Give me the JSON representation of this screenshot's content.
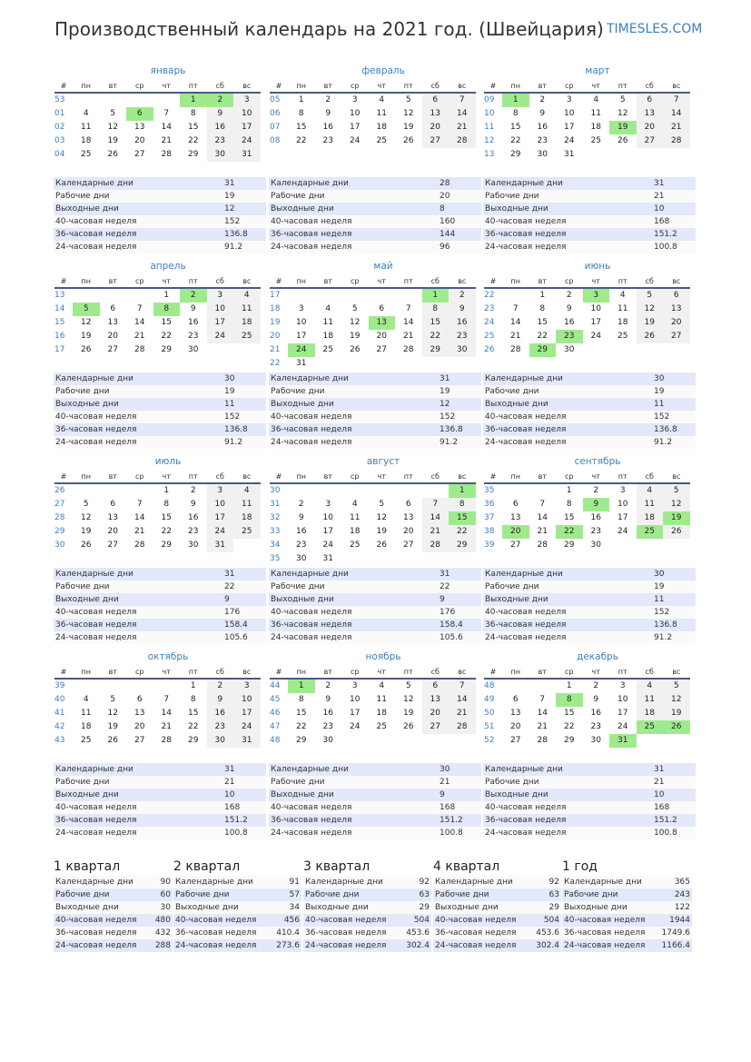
{
  "header": {
    "title": "Производственный календарь на 2021 год. (Швейцария)",
    "site": "TIMESLES.COM"
  },
  "colors": {
    "accent": "#3d7fc0",
    "holiday": "#a0ea8e",
    "weekend": "#f1f1f1",
    "stat_row": "#e3e8fa"
  },
  "weekday_headers": [
    "#",
    "пн",
    "вт",
    "ср",
    "чт",
    "пт",
    "сб",
    "вс"
  ],
  "stat_labels": [
    "Календарные дни",
    "Рабочие дни",
    "Выходные дни",
    "40-часовая неделя",
    "36-часовая неделя",
    "24-часовая неделя"
  ],
  "months": [
    {
      "name": "январь",
      "first_weekday": 5,
      "days": 31,
      "weeks": [
        "53",
        "01",
        "02",
        "03",
        "04"
      ],
      "holidays": [
        1,
        2,
        6
      ],
      "stats": [
        "31",
        "19",
        "12",
        "152",
        "136.8",
        "91.2"
      ]
    },
    {
      "name": "февраль",
      "first_weekday": 1,
      "days": 28,
      "weeks": [
        "05",
        "06",
        "07",
        "08"
      ],
      "holidays": [],
      "stats": [
        "28",
        "20",
        "8",
        "160",
        "144",
        "96"
      ]
    },
    {
      "name": "март",
      "first_weekday": 1,
      "days": 31,
      "weeks": [
        "09",
        "10",
        "11",
        "12",
        "13"
      ],
      "holidays": [
        1,
        19
      ],
      "stats": [
        "31",
        "21",
        "10",
        "168",
        "151.2",
        "100.8"
      ]
    },
    {
      "name": "апрель",
      "first_weekday": 4,
      "days": 30,
      "weeks": [
        "13",
        "14",
        "15",
        "16",
        "17"
      ],
      "holidays": [
        2,
        5,
        8
      ],
      "stats": [
        "30",
        "19",
        "11",
        "152",
        "136.8",
        "91.2"
      ]
    },
    {
      "name": "май",
      "first_weekday": 6,
      "days": 31,
      "weeks": [
        "17",
        "18",
        "19",
        "20",
        "21",
        "22"
      ],
      "holidays": [
        1,
        13,
        24
      ],
      "stats": [
        "31",
        "19",
        "12",
        "152",
        "136.8",
        "91.2"
      ]
    },
    {
      "name": "июнь",
      "first_weekday": 2,
      "days": 30,
      "weeks": [
        "22",
        "23",
        "24",
        "25",
        "26"
      ],
      "holidays": [
        3,
        23,
        29
      ],
      "stats": [
        "30",
        "19",
        "11",
        "152",
        "136.8",
        "91.2"
      ]
    },
    {
      "name": "июль",
      "first_weekday": 4,
      "days": 31,
      "weeks": [
        "26",
        "27",
        "28",
        "29",
        "30"
      ],
      "holidays": [],
      "stats": [
        "31",
        "22",
        "9",
        "176",
        "158.4",
        "105.6"
      ]
    },
    {
      "name": "август",
      "first_weekday": 7,
      "days": 31,
      "weeks": [
        "30",
        "31",
        "32",
        "33",
        "34",
        "35"
      ],
      "holidays": [
        1,
        15
      ],
      "stats": [
        "31",
        "22",
        "9",
        "176",
        "158.4",
        "105.6"
      ]
    },
    {
      "name": "сентябрь",
      "first_weekday": 3,
      "days": 30,
      "weeks": [
        "35",
        "36",
        "37",
        "38",
        "39"
      ],
      "holidays": [
        9,
        19,
        20,
        22,
        25
      ],
      "stats": [
        "30",
        "19",
        "11",
        "152",
        "136.8",
        "91.2"
      ]
    },
    {
      "name": "октябрь",
      "first_weekday": 5,
      "days": 31,
      "weeks": [
        "39",
        "40",
        "41",
        "42",
        "43"
      ],
      "holidays": [],
      "stats": [
        "31",
        "21",
        "10",
        "168",
        "151.2",
        "100.8"
      ]
    },
    {
      "name": "ноябрь",
      "first_weekday": 1,
      "days": 30,
      "weeks": [
        "44",
        "45",
        "46",
        "47",
        "48"
      ],
      "holidays": [
        1
      ],
      "stats": [
        "30",
        "21",
        "9",
        "168",
        "151.2",
        "100.8"
      ]
    },
    {
      "name": "декабрь",
      "first_weekday": 3,
      "days": 31,
      "weeks": [
        "48",
        "49",
        "50",
        "51",
        "52"
      ],
      "holidays": [
        8,
        25,
        26,
        31
      ],
      "stats": [
        "31",
        "21",
        "10",
        "168",
        "151.2",
        "100.8"
      ]
    }
  ],
  "summaries": [
    {
      "title": "1 квартал",
      "stats": [
        "90",
        "60",
        "30",
        "480",
        "432",
        "288"
      ]
    },
    {
      "title": "2 квартал",
      "stats": [
        "91",
        "57",
        "34",
        "456",
        "410.4",
        "273.6"
      ]
    },
    {
      "title": "3 квартал",
      "stats": [
        "92",
        "63",
        "29",
        "504",
        "453.6",
        "302.4"
      ]
    },
    {
      "title": "4 квартал",
      "stats": [
        "92",
        "63",
        "29",
        "504",
        "453.6",
        "302.4"
      ]
    },
    {
      "title": "1 год",
      "stats": [
        "365",
        "243",
        "122",
        "1944",
        "1749.6",
        "1166.4"
      ]
    }
  ]
}
